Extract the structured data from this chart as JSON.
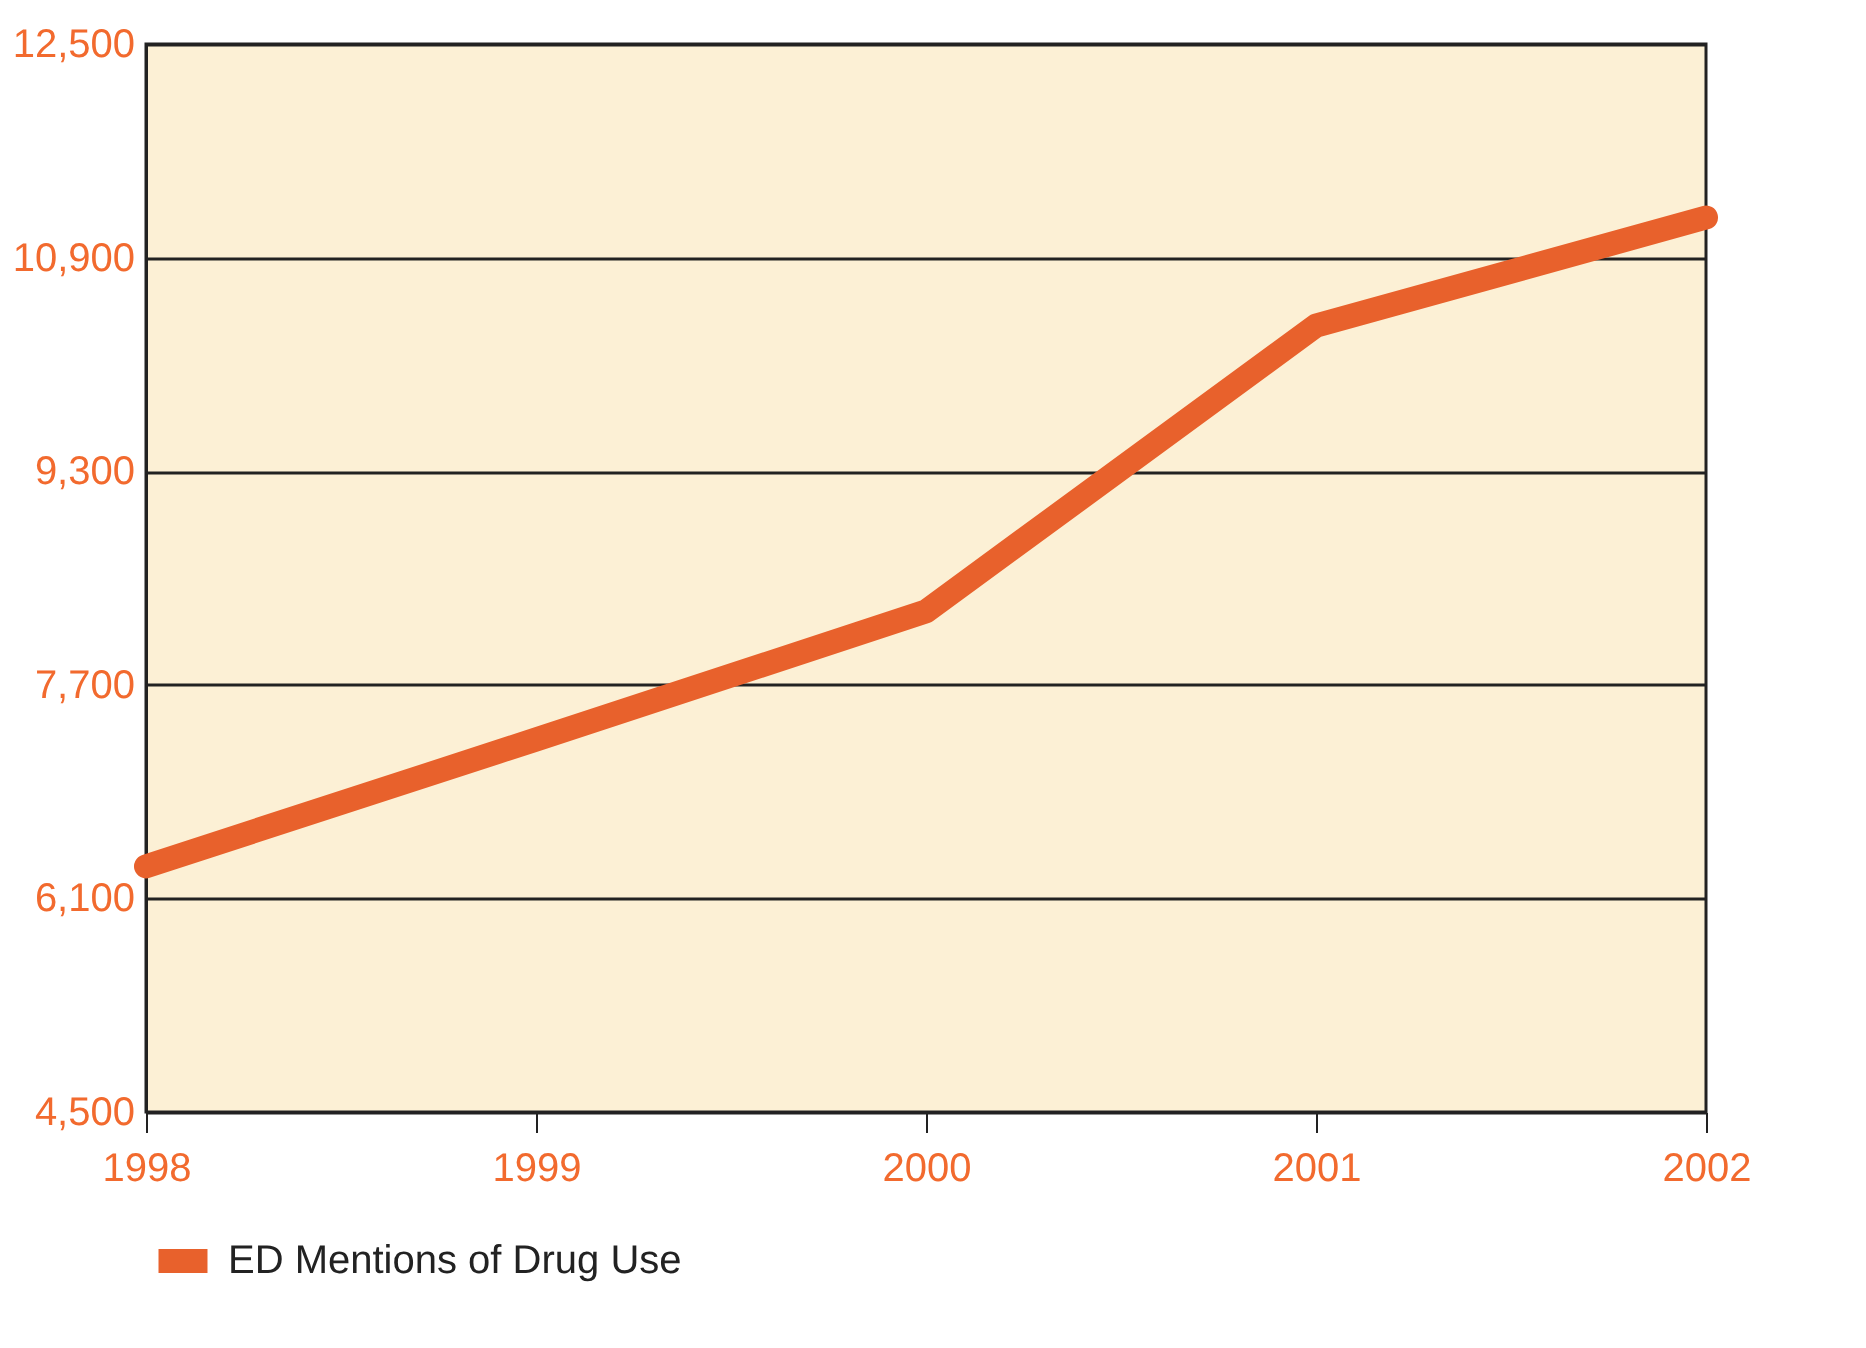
{
  "chart_data": {
    "type": "line",
    "x": [
      1998,
      1999,
      2000,
      2001,
      2002
    ],
    "xlim": [
      1998,
      2002
    ],
    "xticks": [
      1998,
      1999,
      2000,
      2001,
      2002
    ],
    "ylim": [
      4500,
      12500
    ],
    "yticks": [
      {
        "value": 4500,
        "label": "4,500"
      },
      {
        "value": 6100,
        "label": "6,100"
      },
      {
        "value": 7700,
        "label": "7,700"
      },
      {
        "value": 9300,
        "label": "9,300"
      },
      {
        "value": 10900,
        "label": "10,900"
      },
      {
        "value": 12500,
        "label": "12,500"
      }
    ],
    "series": [
      {
        "name": "ED Mentions of Drug Use",
        "color": "#e8612c",
        "values": [
          6340,
          7290,
          8250,
          10390,
          11200
        ]
      }
    ],
    "grid": "y",
    "legend": "bottom",
    "marker": "none",
    "line_style": "solid"
  }
}
